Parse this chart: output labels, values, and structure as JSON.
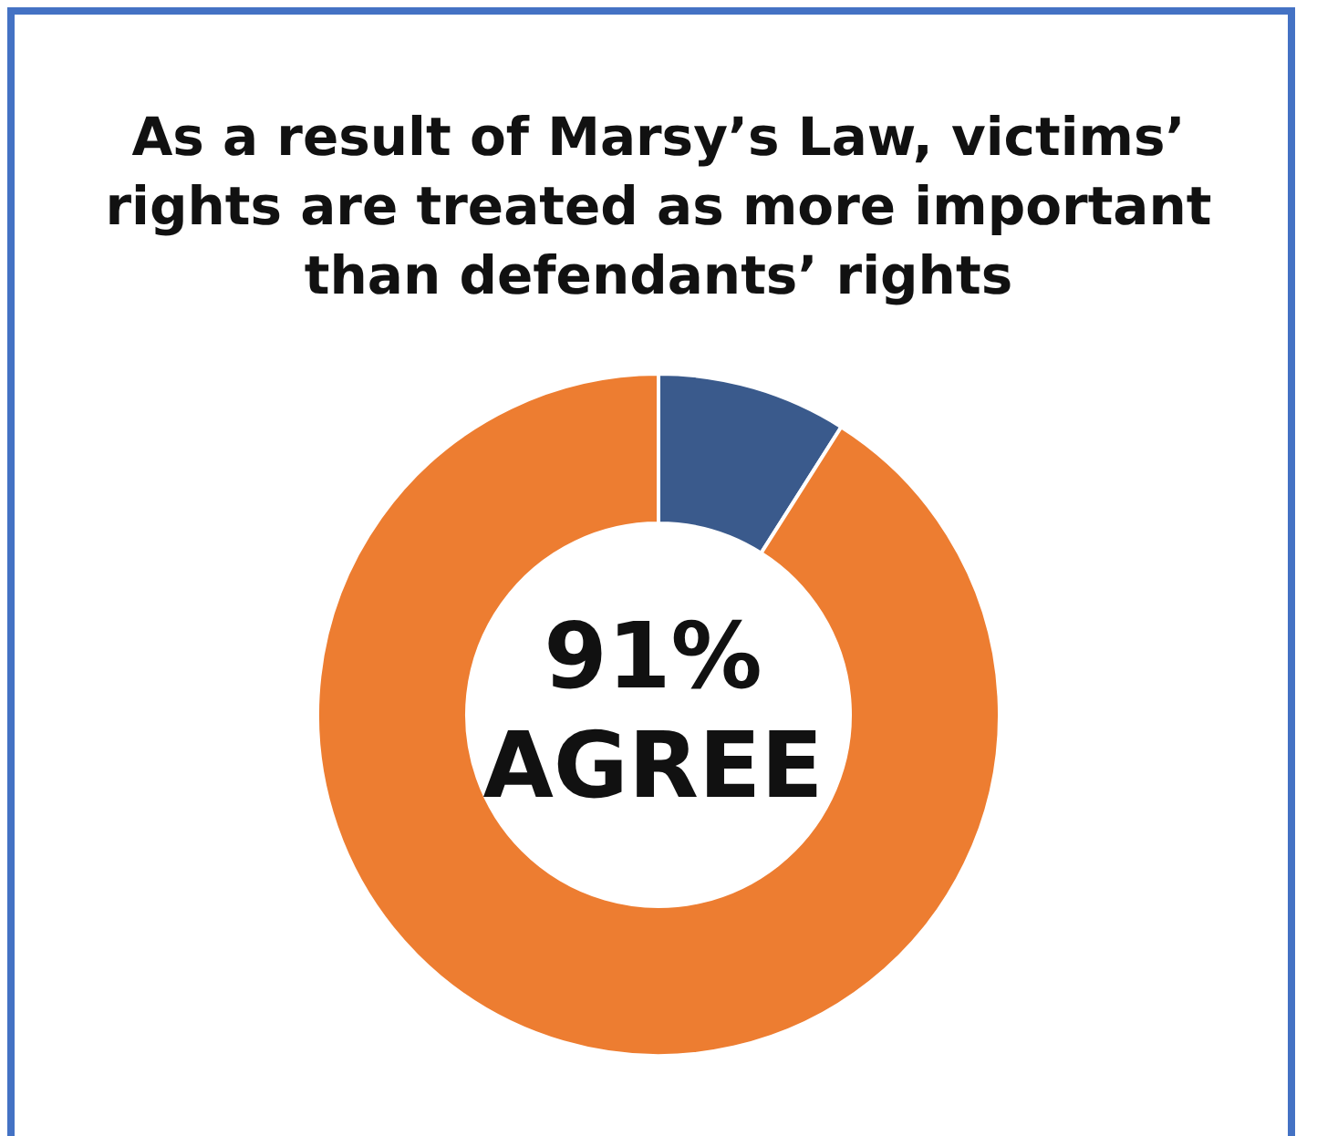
{
  "chart_data": {
    "type": "donut",
    "title": "As a result of Marsy’s Law, victims’ rights are treated as more important than defendants’ rights",
    "categories": [
      null,
      "AGREE"
    ],
    "values": [
      9,
      91
    ],
    "colors": [
      "#3a5a8c",
      "#ed7d31"
    ],
    "annotations": [
      "91%"
    ],
    "legend": false
  }
}
